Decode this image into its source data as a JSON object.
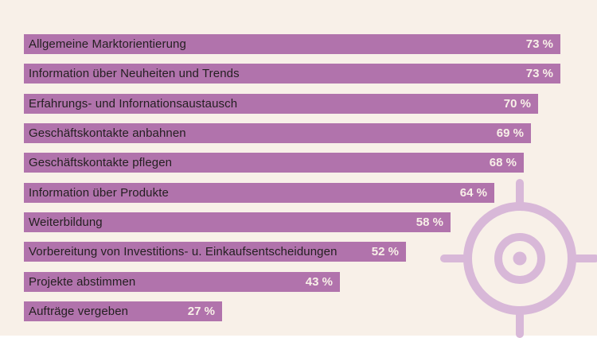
{
  "chart_data": {
    "type": "bar",
    "orientation": "horizontal",
    "title": "",
    "xlabel": "",
    "ylabel": "",
    "categories": [
      "Allgemeine Marktorientierung",
      "Information über Neuheiten und Trends",
      "Erfahrungs- und Infornationsaustausch",
      "Geschäftskontakte anbahnen",
      "Geschäftskontakte pflegen",
      "Information über Produkte",
      "Weiterbildung",
      "Vorbereitung von Investitions- u. Einkaufsentscheidungen",
      "Projekte abstimmen",
      "Aufträge vergeben"
    ],
    "values": [
      73,
      73,
      70,
      69,
      68,
      64,
      58,
      52,
      43,
      27
    ],
    "value_suffix": " %",
    "value_labels": [
      "73 %",
      "73 %",
      "70 %",
      "69 %",
      "68 %",
      "64 %",
      "58 %",
      "52 %",
      "43 %",
      "27 %"
    ],
    "xlim": [
      0,
      78
    ],
    "grid": false,
    "legend": "none",
    "value_label_position": "inside-end",
    "category_label_position": "inside-start"
  },
  "icons": [
    {
      "name": "target-icon",
      "description": "crosshair target with outer ring, inner ring, center dot and four tick marks"
    }
  ],
  "colors": {
    "background": "#f8f0e8",
    "bar": "#b173ac",
    "category_text": "#231f20",
    "value_text": "#f8f0e8",
    "target_icon": "#d8b8d8"
  }
}
